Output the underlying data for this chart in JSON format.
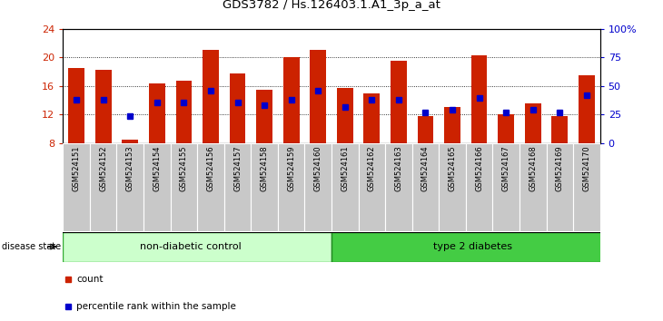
{
  "title": "GDS3782 / Hs.126403.1.A1_3p_a_at",
  "samples": [
    "GSM524151",
    "GSM524152",
    "GSM524153",
    "GSM524154",
    "GSM524155",
    "GSM524156",
    "GSM524157",
    "GSM524158",
    "GSM524159",
    "GSM524160",
    "GSM524161",
    "GSM524162",
    "GSM524163",
    "GSM524164",
    "GSM524165",
    "GSM524166",
    "GSM524167",
    "GSM524168",
    "GSM524169",
    "GSM524170"
  ],
  "counts": [
    18.5,
    18.2,
    8.5,
    16.3,
    16.7,
    21.0,
    17.7,
    15.5,
    20.0,
    21.0,
    15.7,
    15.0,
    19.5,
    11.7,
    13.0,
    20.3,
    12.0,
    13.5,
    11.7,
    17.5
  ],
  "percentile_values": [
    14.0,
    14.0,
    11.7,
    13.7,
    13.7,
    15.3,
    13.7,
    13.3,
    14.0,
    15.3,
    13.0,
    14.0,
    14.0,
    12.3,
    12.7,
    14.3,
    12.3,
    12.7,
    12.3,
    14.7
  ],
  "y_min": 8,
  "y_max": 24,
  "y_ticks_left": [
    8,
    12,
    16,
    20,
    24
  ],
  "y_ticks_right": [
    0,
    25,
    50,
    75,
    100
  ],
  "bar_color": "#cc2200",
  "marker_color": "#0000cc",
  "group1_label": "non-diabetic control",
  "group2_label": "type 2 diabetes",
  "group1_color": "#ccffcc",
  "group2_color": "#44cc44",
  "tickbg_color": "#c8c8c8",
  "left_color": "#cc2200",
  "right_color": "#0000cc",
  "legend_count_color": "#cc2200",
  "legend_pct_color": "#0000cc"
}
